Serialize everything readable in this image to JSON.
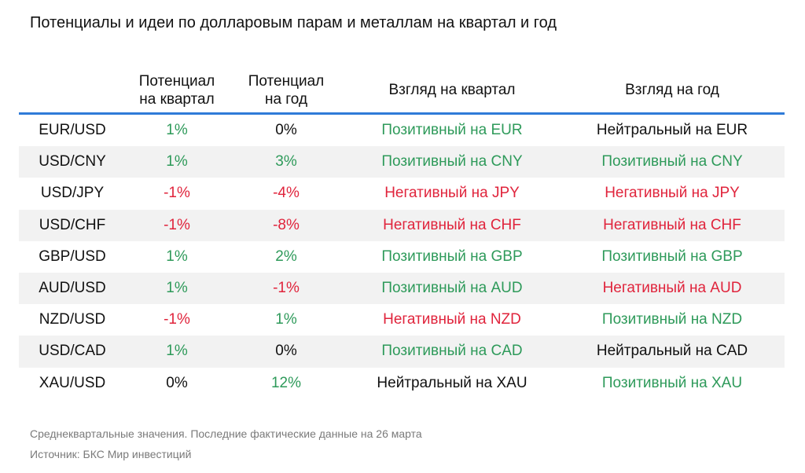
{
  "title": "Потенциалы и идеи по долларовым парам и металлам на квартал и год",
  "colors": {
    "positive": "#2e9a5a",
    "negative": "#e0243c",
    "neutral": "#111111",
    "header_rule": "#2f7bd8",
    "stripe": "#f2f2f2"
  },
  "table": {
    "headers": {
      "pair": "",
      "q_potential_line1": "Потенциал",
      "q_potential_line2": "на квартал",
      "y_potential_line1": "Потенциал",
      "y_potential_line2": "на год",
      "q_view": "Взгляд на квартал",
      "y_view": "Взгляд на год"
    },
    "rows": [
      {
        "pair": "EUR/USD",
        "q_potential": "1%",
        "q_potential_tone": "pos",
        "y_potential": "0%",
        "y_potential_tone": "neu",
        "q_view": "Позитивный на EUR",
        "q_view_tone": "pos",
        "y_view": "Нейтральный на EUR",
        "y_view_tone": "neu"
      },
      {
        "pair": "USD/CNY",
        "q_potential": "1%",
        "q_potential_tone": "pos",
        "y_potential": "3%",
        "y_potential_tone": "pos",
        "q_view": "Позитивный на CNY",
        "q_view_tone": "pos",
        "y_view": "Позитивный на CNY",
        "y_view_tone": "pos"
      },
      {
        "pair": "USD/JPY",
        "q_potential": "-1%",
        "q_potential_tone": "neg",
        "y_potential": "-4%",
        "y_potential_tone": "neg",
        "q_view": "Негативный на JPY",
        "q_view_tone": "neg",
        "y_view": "Негативный на JPY",
        "y_view_tone": "neg"
      },
      {
        "pair": "USD/CHF",
        "q_potential": "-1%",
        "q_potential_tone": "neg",
        "y_potential": "-8%",
        "y_potential_tone": "neg",
        "q_view": "Негативный на CHF",
        "q_view_tone": "neg",
        "y_view": "Негативный на CHF",
        "y_view_tone": "neg"
      },
      {
        "pair": "GBP/USD",
        "q_potential": "1%",
        "q_potential_tone": "pos",
        "y_potential": "2%",
        "y_potential_tone": "pos",
        "q_view": "Позитивный на GBP",
        "q_view_tone": "pos",
        "y_view": "Позитивный на GBP",
        "y_view_tone": "pos"
      },
      {
        "pair": "AUD/USD",
        "q_potential": "1%",
        "q_potential_tone": "pos",
        "y_potential": "-1%",
        "y_potential_tone": "neg",
        "q_view": "Позитивный на AUD",
        "q_view_tone": "pos",
        "y_view": "Негативный на AUD",
        "y_view_tone": "neg"
      },
      {
        "pair": "NZD/USD",
        "q_potential": "-1%",
        "q_potential_tone": "neg",
        "y_potential": "1%",
        "y_potential_tone": "pos",
        "q_view": "Негативный на NZD",
        "q_view_tone": "neg",
        "y_view": "Позитивный на NZD",
        "y_view_tone": "pos"
      },
      {
        "pair": "USD/CAD",
        "q_potential": "1%",
        "q_potential_tone": "pos",
        "y_potential": "0%",
        "y_potential_tone": "neu",
        "q_view": "Позитивный на CAD",
        "q_view_tone": "pos",
        "y_view": "Нейтральный на CAD",
        "y_view_tone": "neu"
      },
      {
        "pair": "XAU/USD",
        "q_potential": "0%",
        "q_potential_tone": "neu",
        "y_potential": "12%",
        "y_potential_tone": "pos",
        "q_view": "Нейтральный на XAU",
        "q_view_tone": "neu",
        "y_view": "Позитивный на XAU",
        "y_view_tone": "pos"
      }
    ]
  },
  "notes": {
    "line1": "Среднеквартальные значения. Последние фактические данные на 26 марта",
    "line2": "Источник: БКС Мир инвестиций"
  }
}
